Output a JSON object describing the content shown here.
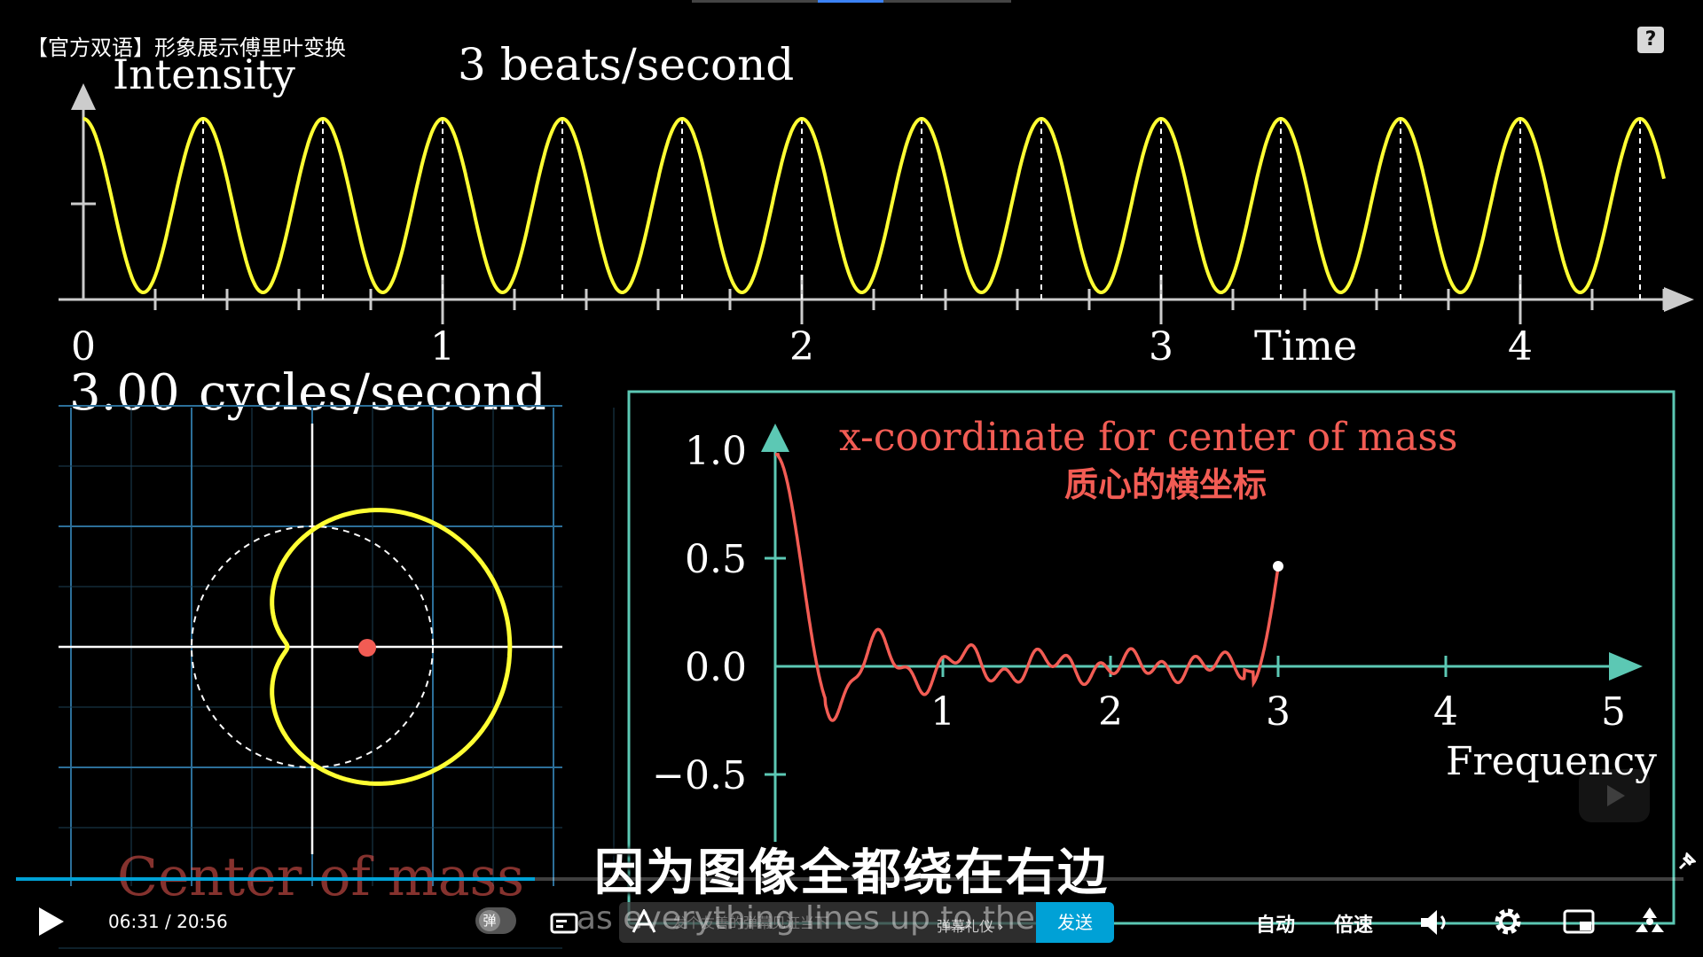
{
  "video": {
    "title": "【官方双语】形象展示傅里叶变换",
    "help_label": "?"
  },
  "scene": {
    "top_plot": {
      "ylabel": "Intensity",
      "title": "3 beats/second",
      "xlabel": "Time",
      "x_ticks": [
        "0",
        "1",
        "2",
        "3",
        "4"
      ]
    },
    "winding": {
      "title_value": "3.00",
      "title_unit": "cycles/second",
      "footer": "Center of mass"
    },
    "com_plot": {
      "title": "x-coordinate for center of mass",
      "title_cn": "质心的横坐标",
      "y_ticks": [
        "1.0",
        "0.5",
        "0.0",
        "−0.5"
      ],
      "x_ticks": [
        "1",
        "2",
        "3",
        "4",
        "5"
      ],
      "xlabel": "Frequency"
    },
    "colors": {
      "signal": "#ffff33",
      "com_curve": "#f25c54",
      "axis_teal": "#5cc8b4",
      "grid": "#2c6f99",
      "center_of_mass": "#f25c54"
    }
  },
  "subtitle": "因为图像全都绕在右边",
  "caption_echo": "as everything lines up to the",
  "player": {
    "current_time": "06:31",
    "separator": "/",
    "duration": "20:56",
    "progress_fraction": 0.311,
    "danmaku_toggle_label": "弹",
    "danmaku_placeholder": "发个友善的弹幕见证当下",
    "danmaku_etiquette": "弹幕礼仪 ›",
    "send_label": "发送",
    "quality_label": "自动",
    "speed_label": "倍速"
  },
  "icons": [
    "play-icon",
    "danmaku-settings-icon",
    "danmaku-style-icon",
    "volume-icon",
    "gear-icon",
    "pip-icon",
    "fullscreen-icon",
    "pin-icon",
    "help-icon"
  ]
}
